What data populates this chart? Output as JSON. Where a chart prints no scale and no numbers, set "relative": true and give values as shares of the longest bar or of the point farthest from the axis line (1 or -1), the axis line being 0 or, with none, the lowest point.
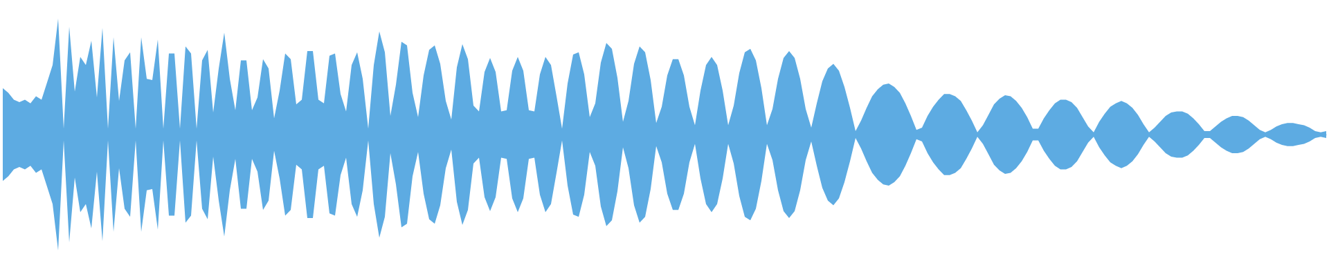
{
  "chart_data": {
    "type": "area",
    "relative": true,
    "categories": [
      null,
      null,
      null,
      null,
      null,
      null,
      null,
      null,
      null,
      null,
      null,
      null,
      null,
      null,
      null,
      null,
      null,
      null,
      null,
      null,
      null,
      null,
      null,
      null,
      null,
      null,
      null,
      null,
      null,
      null,
      null,
      null,
      null,
      null,
      null,
      null,
      null,
      null,
      null,
      null,
      null,
      null,
      null,
      null,
      null,
      null,
      null,
      null,
      null,
      null,
      null,
      null,
      null,
      null,
      null,
      null,
      null,
      null,
      null,
      null,
      null,
      null,
      null,
      null,
      null,
      null,
      null,
      null,
      null,
      null,
      null,
      null,
      null,
      null,
      null,
      null,
      null,
      null,
      null,
      null,
      null,
      null,
      null,
      null,
      null,
      null,
      null,
      null,
      null,
      null,
      null,
      null,
      null,
      null,
      null,
      null,
      null,
      null,
      null,
      null,
      null,
      null,
      null,
      null,
      null,
      null,
      null,
      null,
      null,
      null,
      null,
      null,
      null,
      null,
      null,
      null,
      null,
      null,
      null,
      null,
      null,
      null,
      null,
      null,
      null,
      null,
      null,
      null,
      null,
      null,
      null,
      null,
      null,
      null,
      null,
      null,
      null,
      null,
      null,
      null,
      null,
      null,
      null,
      null,
      null,
      null,
      null,
      null,
      null,
      null,
      null,
      null,
      null,
      null,
      null,
      null,
      null,
      null,
      null,
      null,
      null,
      null,
      null,
      null,
      null,
      null,
      null,
      null,
      null,
      null,
      null,
      null,
      null,
      null,
      null,
      null,
      null,
      null,
      null,
      null,
      null,
      null,
      null,
      null,
      null,
      null,
      null,
      null,
      null,
      null,
      null,
      null,
      null,
      null,
      null,
      null,
      null,
      null,
      null,
      null,
      null,
      null,
      null,
      null,
      null,
      null,
      null,
      null,
      null,
      null,
      null,
      null,
      null,
      null,
      null,
      null,
      null,
      null,
      null,
      null,
      null,
      null,
      null,
      null,
      null,
      null,
      null,
      null,
      null,
      null,
      null,
      null,
      null,
      null,
      null,
      null,
      null,
      null,
      null,
      null
    ],
    "series": [
      {
        "color": "#5dabe2",
        "values": [
          0.4,
          0.36,
          0.3,
          0.28,
          0.3,
          0.27,
          0.33,
          0.3,
          0.45,
          0.6,
          1,
          0.05,
          0.93,
          0.37,
          0.67,
          0.6,
          0.81,
          0.32,
          0.92,
          0.05,
          0.84,
          0.29,
          0.64,
          0.71,
          0.05,
          0.84,
          0.48,
          0.47,
          0.82,
          0.05,
          0.7,
          0.7,
          0.05,
          0.76,
          0.7,
          0.05,
          0.64,
          0.73,
          0.19,
          0.57,
          0.88,
          0.48,
          0.21,
          0.64,
          0.64,
          0.21,
          0.32,
          0.65,
          0.57,
          0.14,
          0.38,
          0.7,
          0.65,
          0.26,
          0.3,
          0.72,
          0.72,
          0.3,
          0.27,
          0.68,
          0.7,
          0.35,
          0.2,
          0.6,
          0.71,
          0.48,
          0.05,
          0.6,
          0.89,
          0.71,
          0.16,
          0.43,
          0.8,
          0.77,
          0.36,
          0.15,
          0.51,
          0.73,
          0.77,
          0.61,
          0.29,
          0.13,
          0.58,
          0.78,
          0.65,
          0.25,
          0.2,
          0.54,
          0.66,
          0.54,
          0.2,
          0.21,
          0.55,
          0.67,
          0.55,
          0.21,
          0.2,
          0.52,
          0.67,
          0.6,
          0.33,
          0.05,
          0.44,
          0.69,
          0.71,
          0.52,
          0.15,
          0.27,
          0.62,
          0.79,
          0.74,
          0.49,
          0.11,
          0.29,
          0.61,
          0.76,
          0.71,
          0.47,
          0.1,
          0.24,
          0.51,
          0.65,
          0.65,
          0.51,
          0.24,
          0.08,
          0.38,
          0.6,
          0.67,
          0.6,
          0.38,
          0.08,
          0.25,
          0.53,
          0.71,
          0.74,
          0.64,
          0.4,
          0.08,
          0.22,
          0.48,
          0.66,
          0.72,
          0.66,
          0.48,
          0.22,
          0.06,
          0.27,
          0.46,
          0.57,
          0.61,
          0.55,
          0.41,
          0.23,
          0.03,
          0.12,
          0.23,
          0.33,
          0.39,
          0.43,
          0.44,
          0.41,
          0.36,
          0.27,
          0.16,
          0.04,
          0.06,
          0.16,
          0.24,
          0.3,
          0.35,
          0.35,
          0.33,
          0.29,
          0.21,
          0.12,
          0.02,
          0.08,
          0.17,
          0.26,
          0.31,
          0.34,
          0.33,
          0.29,
          0.23,
          0.15,
          0.05,
          0.05,
          0.14,
          0.21,
          0.27,
          0.3,
          0.3,
          0.28,
          0.23,
          0.15,
          0.07,
          0.02,
          0.11,
          0.18,
          0.24,
          0.27,
          0.29,
          0.27,
          0.23,
          0.17,
          0.09,
          0.02,
          0.06,
          0.11,
          0.16,
          0.19,
          0.2,
          0.2,
          0.18,
          0.14,
          0.09,
          0.03,
          0.03,
          0.07,
          0.11,
          0.14,
          0.16,
          0.16,
          0.15,
          0.12,
          0.08,
          0.04,
          0.02,
          0.04,
          0.07,
          0.09,
          0.1,
          0.1,
          0.09,
          0.08,
          0.06,
          0.03,
          0.02,
          0.03
        ]
      },
      {
        "color": "#5dabe2",
        "values": [
          -0.4,
          -0.36,
          -0.3,
          -0.28,
          -0.3,
          -0.27,
          -0.33,
          -0.3,
          -0.45,
          -0.6,
          -1,
          -0.05,
          -0.93,
          -0.37,
          -0.67,
          -0.6,
          -0.81,
          -0.32,
          -0.92,
          -0.05,
          -0.84,
          -0.29,
          -0.64,
          -0.71,
          -0.05,
          -0.84,
          -0.48,
          -0.47,
          -0.82,
          -0.05,
          -0.7,
          -0.7,
          -0.05,
          -0.76,
          -0.7,
          -0.05,
          -0.64,
          -0.73,
          -0.19,
          -0.57,
          -0.88,
          -0.48,
          -0.21,
          -0.64,
          -0.64,
          -0.21,
          -0.32,
          -0.65,
          -0.57,
          -0.14,
          -0.38,
          -0.7,
          -0.65,
          -0.26,
          -0.3,
          -0.72,
          -0.72,
          -0.3,
          -0.27,
          -0.68,
          -0.7,
          -0.35,
          -0.2,
          -0.6,
          -0.71,
          -0.48,
          -0.05,
          -0.6,
          -0.89,
          -0.71,
          -0.16,
          -0.43,
          -0.8,
          -0.77,
          -0.36,
          -0.15,
          -0.51,
          -0.73,
          -0.77,
          -0.61,
          -0.29,
          -0.13,
          -0.58,
          -0.78,
          -0.65,
          -0.25,
          -0.2,
          -0.54,
          -0.66,
          -0.54,
          -0.2,
          -0.21,
          -0.55,
          -0.67,
          -0.55,
          -0.21,
          -0.2,
          -0.52,
          -0.67,
          -0.6,
          -0.33,
          -0.05,
          -0.44,
          -0.69,
          -0.71,
          -0.52,
          -0.15,
          -0.27,
          -0.62,
          -0.79,
          -0.74,
          -0.49,
          -0.11,
          -0.29,
          -0.61,
          -0.76,
          -0.71,
          -0.47,
          -0.1,
          -0.24,
          -0.51,
          -0.65,
          -0.65,
          -0.51,
          -0.24,
          -0.08,
          -0.38,
          -0.6,
          -0.67,
          -0.6,
          -0.38,
          -0.08,
          -0.25,
          -0.53,
          -0.71,
          -0.74,
          -0.64,
          -0.4,
          -0.08,
          -0.22,
          -0.48,
          -0.66,
          -0.72,
          -0.66,
          -0.48,
          -0.22,
          -0.06,
          -0.27,
          -0.46,
          -0.57,
          -0.61,
          -0.55,
          -0.41,
          -0.23,
          -0.03,
          -0.12,
          -0.23,
          -0.33,
          -0.39,
          -0.43,
          -0.44,
          -0.41,
          -0.36,
          -0.27,
          -0.16,
          -0.04,
          -0.06,
          -0.16,
          -0.24,
          -0.3,
          -0.35,
          -0.35,
          -0.33,
          -0.29,
          -0.21,
          -0.12,
          -0.02,
          -0.08,
          -0.17,
          -0.26,
          -0.31,
          -0.34,
          -0.33,
          -0.29,
          -0.23,
          -0.15,
          -0.05,
          -0.05,
          -0.14,
          -0.21,
          -0.27,
          -0.3,
          -0.3,
          -0.28,
          -0.23,
          -0.15,
          -0.07,
          -0.02,
          -0.11,
          -0.18,
          -0.24,
          -0.27,
          -0.29,
          -0.27,
          -0.23,
          -0.17,
          -0.09,
          -0.02,
          -0.06,
          -0.11,
          -0.16,
          -0.19,
          -0.2,
          -0.2,
          -0.18,
          -0.14,
          -0.09,
          -0.03,
          -0.03,
          -0.07,
          -0.11,
          -0.14,
          -0.16,
          -0.16,
          -0.15,
          -0.12,
          -0.08,
          -0.04,
          -0.02,
          -0.04,
          -0.07,
          -0.09,
          -0.1,
          -0.1,
          -0.09,
          -0.08,
          -0.06,
          -0.03,
          -0.02,
          -0.03
        ]
      }
    ]
  }
}
